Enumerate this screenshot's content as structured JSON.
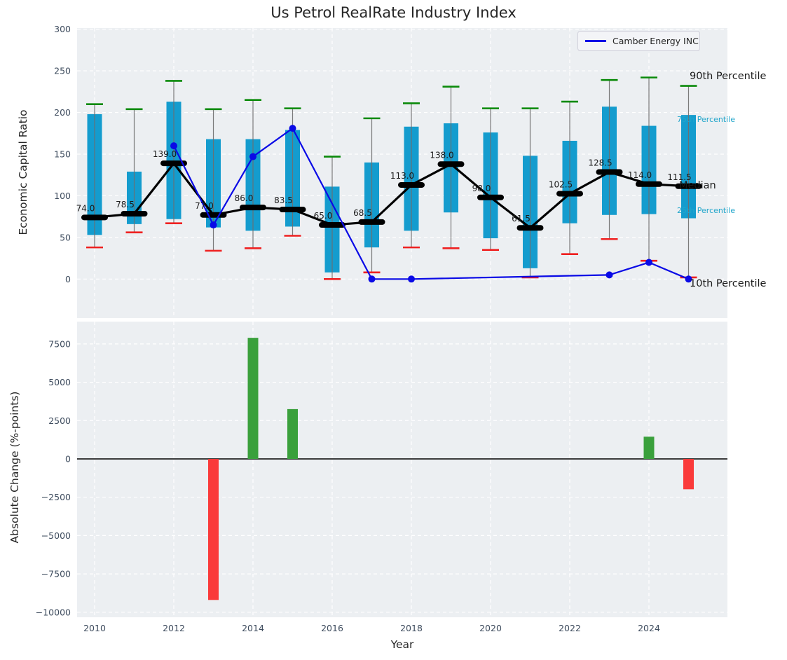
{
  "title": "Us Petrol RealRate Industry Index",
  "legend": {
    "label": "Camber Energy INC"
  },
  "annotations": {
    "p90": "90th Percentile",
    "p75": "75th Percentile",
    "median": "Median",
    "p25": "25th Percentile",
    "p10": "10th Percentile"
  },
  "colors": {
    "axes_bg": "#ECEFF2",
    "grid": "#FFFFFF",
    "tick_label": "#3E4C5E",
    "text": "#262626",
    "box": "#149CCE",
    "whisker": "#6E6E6E",
    "cap_high": "#0A8A0A",
    "cap_low": "#EF2020",
    "median": "#000000",
    "series": "#0A0AE6",
    "bar_positive": "#3AA03C",
    "bar_negative": "#FA3A3A",
    "percentile_label": "#22A6CB"
  },
  "chart_data": [
    {
      "type": "boxplot+line",
      "title": "Us Petrol RealRate Industry Index",
      "ylabel": "Economic Capital Ratio",
      "ylim": [
        -47,
        301
      ],
      "yticks": [
        0,
        50,
        100,
        150,
        200,
        250,
        300
      ],
      "grid": "on",
      "legend_position": "upper right",
      "boxes": [
        {
          "year": 2010,
          "p10": 38,
          "q25": 53,
          "median": 74.0,
          "q75": 198,
          "p90": 210
        },
        {
          "year": 2011,
          "p10": 56,
          "q25": 66,
          "median": 78.5,
          "q75": 129,
          "p90": 204
        },
        {
          "year": 2012,
          "p10": 67,
          "q25": 72,
          "median": 139.0,
          "q75": 213,
          "p90": 238
        },
        {
          "year": 2013,
          "p10": 34,
          "q25": 62,
          "median": 77.0,
          "q75": 168,
          "p90": 204
        },
        {
          "year": 2014,
          "p10": 37,
          "q25": 58,
          "median": 86.0,
          "q75": 168,
          "p90": 215
        },
        {
          "year": 2015,
          "p10": 52,
          "q25": 63,
          "median": 83.5,
          "q75": 179,
          "p90": 205
        },
        {
          "year": 2016,
          "p10": 0,
          "q25": 8,
          "median": 65.0,
          "q75": 111,
          "p90": 147
        },
        {
          "year": 2017,
          "p10": 8,
          "q25": 38,
          "median": 68.5,
          "q75": 140,
          "p90": 193
        },
        {
          "year": 2018,
          "p10": 38,
          "q25": 58,
          "median": 113.0,
          "q75": 183,
          "p90": 211
        },
        {
          "year": 2019,
          "p10": 37,
          "q25": 80,
          "median": 138.0,
          "q75": 187,
          "p90": 231
        },
        {
          "year": 2020,
          "p10": 35,
          "q25": 49,
          "median": 98.0,
          "q75": 176,
          "p90": 205
        },
        {
          "year": 2021,
          "p10": 2,
          "q25": 13,
          "median": 61.5,
          "q75": 148,
          "p90": 205
        },
        {
          "year": 2022,
          "p10": 30,
          "q25": 67,
          "median": 102.5,
          "q75": 166,
          "p90": 213
        },
        {
          "year": 2023,
          "p10": 48,
          "q25": 77,
          "median": 128.5,
          "q75": 207,
          "p90": 239
        },
        {
          "year": 2024,
          "p10": 22,
          "q25": 78,
          "median": 114.0,
          "q75": 184,
          "p90": 242
        },
        {
          "year": 2025,
          "p10": 2,
          "q25": 73,
          "median": 111.5,
          "q75": 197,
          "p90": 232
        }
      ],
      "median_labels": [
        "74.0",
        "78.5",
        "139.0",
        "77.0",
        "86.0",
        "83.5",
        "65.0",
        "68.5",
        "113.0",
        "138.0",
        "98.0",
        "61.5",
        "102.5",
        "128.5",
        "114.0",
        "111.5"
      ],
      "series": [
        {
          "name": "Camber Energy INC",
          "marker": "circle",
          "points": [
            [
              2012,
              160
            ],
            [
              2013,
              65
            ],
            [
              2014,
              147
            ],
            [
              2015,
              181
            ],
            [
              2017,
              0
            ],
            [
              2018,
              0
            ],
            [
              2023,
              5
            ],
            [
              2024,
              20
            ],
            [
              2025,
              0
            ]
          ]
        }
      ]
    },
    {
      "type": "bar",
      "ylabel": "Absolute Change (%-points)",
      "xlabel": "Year",
      "ylim": [
        -10150,
        8860
      ],
      "yticks": [
        7500,
        5000,
        2500,
        0,
        -2500,
        -5000,
        -7500,
        -10000
      ],
      "xticks": [
        2010,
        2012,
        2014,
        2016,
        2018,
        2020,
        2022,
        2024
      ],
      "grid": "on",
      "zero_line": true,
      "bars": [
        {
          "year": 2013,
          "value": -9200
        },
        {
          "year": 2014,
          "value": 7900
        },
        {
          "year": 2015,
          "value": 3250
        },
        {
          "year": 2024,
          "value": 1450
        },
        {
          "year": 2025,
          "value": -1980
        }
      ]
    }
  ]
}
